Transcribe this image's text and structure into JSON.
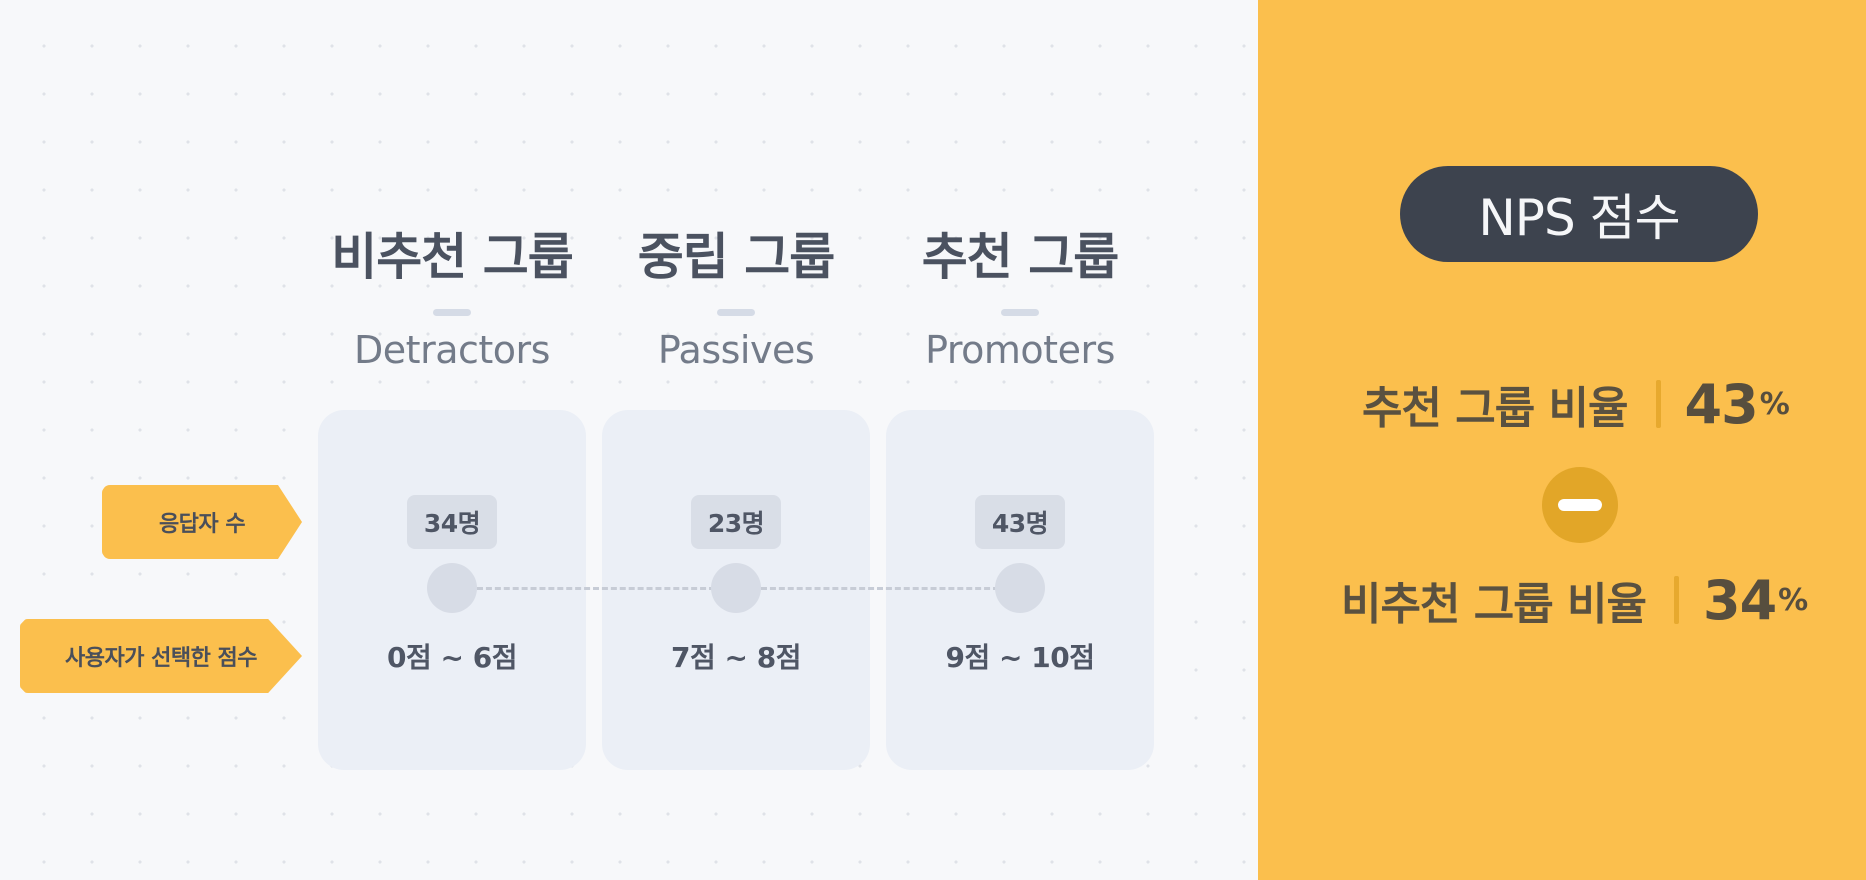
{
  "groups": [
    {
      "title": "비추천 그룹",
      "subtitle": "Detractors",
      "count": "34명",
      "score_range": "0점 ~ 6점"
    },
    {
      "title": "중립 그룹",
      "subtitle": "Passives",
      "count": "23명",
      "score_range": "7점 ~ 8점"
    },
    {
      "title": "추천 그룹",
      "subtitle": "Promoters",
      "count": "43명",
      "score_range": "9점 ~ 10점"
    }
  ],
  "row_labels": {
    "respondents": "응답자 수",
    "selected_score": "사용자가 선택한 점수"
  },
  "nps": {
    "title": "NPS 점수",
    "promoter_label": "추천 그룹 비율",
    "promoter_value": "43",
    "detractor_label": "비추천 그룹 비율",
    "detractor_value": "34",
    "percent_sign": "%",
    "operator_icon": "minus-icon"
  },
  "colors": {
    "accent": "#fbbf4d",
    "dark_pill": "#3d434e",
    "card": "#ebeff6",
    "text": "#4b5260"
  }
}
